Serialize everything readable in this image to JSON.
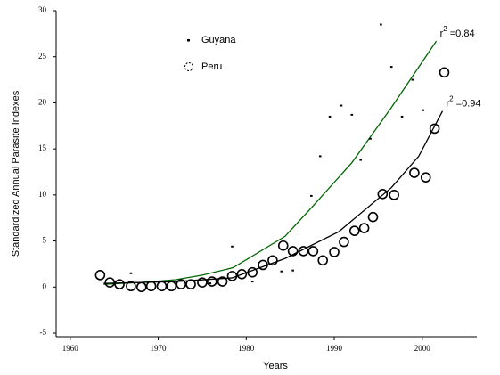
{
  "chart_data": {
    "type": "scatter",
    "x_label": "Years",
    "y_label": "Standardized Annual Parasite Indexes",
    "xlim": [
      1958.4,
      2006.2
    ],
    "ylim": [
      -5,
      30
    ],
    "xticks": [
      1960,
      1970,
      1980,
      1990,
      2000
    ],
    "yticks": [
      -5,
      0,
      5,
      10,
      15,
      20,
      25,
      30
    ],
    "legend": "upper-left",
    "series": [
      {
        "name": "Guyana",
        "mode": "markers",
        "marker": "square",
        "color": "#000000",
        "x": [
          1966.9,
          1975.9,
          1978.4,
          1980.7,
          1984.0,
          1985.3,
          1987.4,
          1988.4,
          1989.5,
          1990.8,
          1992.0,
          1993.0,
          1994.1,
          1995.3,
          1996.5,
          1997.7,
          1998.9,
          2000.1
        ],
        "values": [
          1.5,
          0.4,
          4.4,
          0.6,
          1.7,
          1.8,
          9.9,
          14.2,
          18.5,
          19.7,
          18.7,
          13.8,
          16.1,
          28.5,
          23.9,
          18.5,
          22.5,
          19.2
        ]
      },
      {
        "name": "Peru",
        "mode": "markers",
        "marker": "circle",
        "color": "#000000",
        "x": [
          1963.4,
          1964.5,
          1965.6,
          1966.9,
          1968.1,
          1969.2,
          1970.4,
          1971.5,
          1972.6,
          1973.7,
          1975.0,
          1976.1,
          1977.3,
          1978.4,
          1979.5,
          1980.7,
          1981.9,
          1983.0,
          1984.2,
          1985.3,
          1986.5,
          1987.6,
          1988.7,
          1990.0,
          1991.1,
          1992.3,
          1993.4,
          1994.4,
          1995.5,
          1996.8,
          1999.1,
          2000.4,
          2001.4,
          2002.5
        ],
        "values": [
          1.3,
          0.5,
          0.3,
          0.1,
          0.0,
          0.1,
          0.1,
          0.1,
          0.3,
          0.3,
          0.5,
          0.6,
          0.6,
          1.2,
          1.4,
          1.6,
          2.4,
          2.9,
          4.5,
          3.9,
          3.9,
          3.9,
          2.9,
          3.8,
          4.9,
          6.1,
          6.4,
          7.6,
          10.1,
          10.0,
          12.4,
          11.9,
          17.2,
          23.3
        ]
      }
    ],
    "fits": [
      {
        "color": "#006600",
        "x": [
          1963.8,
          1968.0,
          1972.0,
          1975.0,
          1978.5,
          1984.4,
          1987.4,
          1992.0,
          1996.5,
          2001.6
        ],
        "values": [
          0.3,
          0.5,
          0.8,
          1.3,
          2.1,
          5.5,
          8.6,
          13.5,
          19.5,
          26.7
        ],
        "label": {
          "base": "r",
          "sup": "2",
          "rest": " =0.84"
        }
      },
      {
        "color": "#000000",
        "x": [
          1963.8,
          1968.0,
          1972.0,
          1978.4,
          1984.4,
          1990.5,
          1996.5,
          1999.6,
          2002.3
        ],
        "values": [
          0.4,
          0.5,
          0.6,
          1.0,
          3.1,
          6.0,
          10.8,
          14.2,
          19.1
        ],
        "label": {
          "base": "r",
          "sup": "2",
          "rest": " =0.94"
        }
      }
    ]
  }
}
